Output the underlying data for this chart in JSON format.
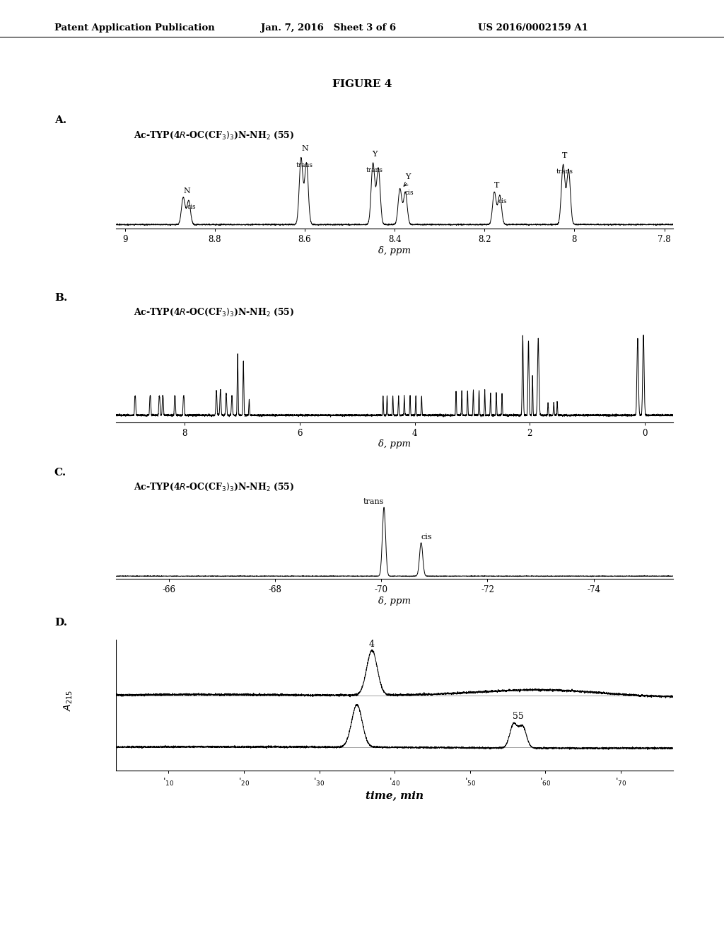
{
  "header_left": "Patent Application Publication",
  "header_mid": "Jan. 7, 2016   Sheet 3 of 6",
  "header_right": "US 2016/0002159 A1",
  "figure_title": "FIGURE 4",
  "background": "#ffffff",
  "panel_A_xlabel": "δ, ppm",
  "panel_B_xlabel": "δ, ppm",
  "panel_C_xlabel": "δ, ppm",
  "panel_D_xlabel": "time, min"
}
